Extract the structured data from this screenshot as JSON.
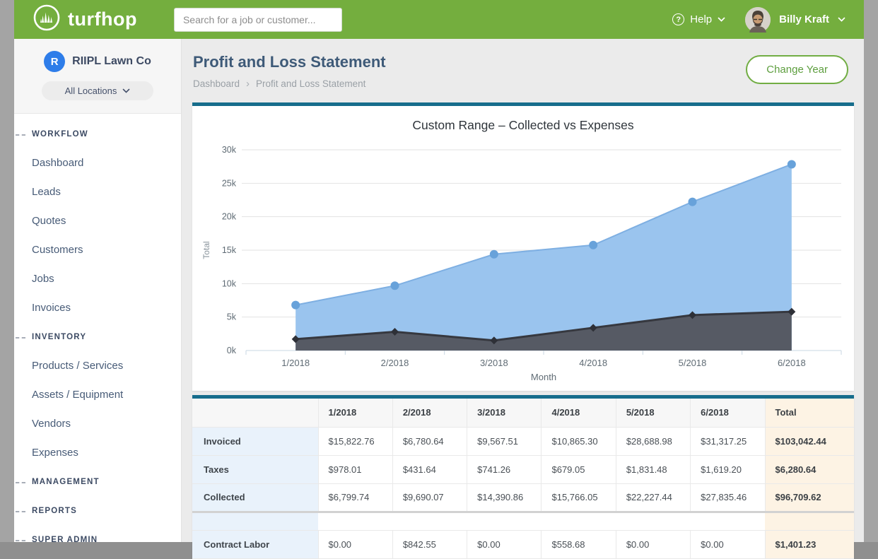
{
  "header": {
    "brand": "turfhop",
    "search_placeholder": "Search for a job or customer...",
    "help_label": "Help",
    "user_name": "Billy Kraft"
  },
  "icons": {
    "help_glyph": "?"
  },
  "sidebar": {
    "company": {
      "initial": "R",
      "name": "RIIPL Lawn Co"
    },
    "location_selector": "All Locations",
    "sections": [
      {
        "label": "WORKFLOW",
        "items": [
          "Dashboard",
          "Leads",
          "Quotes",
          "Customers",
          "Jobs",
          "Invoices"
        ]
      },
      {
        "label": "INVENTORY",
        "items": [
          "Products / Services",
          "Assets / Equipment",
          "Vendors",
          "Expenses"
        ]
      },
      {
        "label": "MANAGEMENT",
        "items": []
      },
      {
        "label": "REPORTS",
        "items": []
      },
      {
        "label": "SUPER ADMIN",
        "items": []
      }
    ]
  },
  "page": {
    "title": "Profit and Loss Statement",
    "breadcrumb": [
      "Dashboard",
      "Profit and Loss Statement"
    ],
    "breadcrumb_separator": "›",
    "change_year_label": "Change Year"
  },
  "colors": {
    "brand_green": "#74ae3e",
    "card_accent_teal": "#166d8c",
    "table_label_blue": "#e9f2fb",
    "table_total_peach": "#fdf3e4"
  },
  "chart_data": {
    "type": "area",
    "title": "Custom Range – Collected vs Expenses",
    "xlabel": "Month",
    "ylabel": "Total",
    "categories": [
      "1/2018",
      "2/2018",
      "3/2018",
      "4/2018",
      "5/2018",
      "6/2018"
    ],
    "series": [
      {
        "name": "Collected",
        "values": [
          6799.74,
          9690.07,
          14390.86,
          15766.05,
          22227.44,
          27835.46
        ],
        "fill": "#9ac4ee",
        "line": "#7eafe2",
        "point": "#68a2da",
        "point_shape": "circle"
      },
      {
        "name": "Expenses",
        "values": [
          1700,
          2800,
          1500,
          3400,
          5300,
          5800
        ],
        "fill": "#565a64",
        "line": "#36383f",
        "point": "#2e3037",
        "point_shape": "diamond"
      }
    ],
    "ylim": [
      0,
      30000
    ],
    "ytick_step": 5000,
    "ytick_labels": [
      "0k",
      "5k",
      "10k",
      "15k",
      "20k",
      "25k",
      "30k"
    ],
    "grid": true,
    "legend": "none"
  },
  "table": {
    "column_headers": [
      "1/2018",
      "2/2018",
      "3/2018",
      "4/2018",
      "5/2018",
      "6/2018",
      "Total"
    ],
    "sections": [
      {
        "rows": [
          {
            "label": "Invoiced",
            "values": [
              "$15,822.76",
              "$6,780.64",
              "$9,567.51",
              "$10,865.30",
              "$28,688.98",
              "$31,317.25"
            ],
            "total": "$103,042.44"
          },
          {
            "label": "Taxes",
            "values": [
              "$978.01",
              "$431.64",
              "$741.26",
              "$679.05",
              "$1,831.48",
              "$1,619.20"
            ],
            "total": "$6,280.64"
          },
          {
            "label": "Collected",
            "values": [
              "$6,799.74",
              "$9,690.07",
              "$14,390.86",
              "$15,766.05",
              "$22,227.44",
              "$27,835.46"
            ],
            "total": "$96,709.62"
          }
        ]
      },
      {
        "rows": [
          {
            "label": "Contract Labor",
            "values": [
              "$0.00",
              "$842.55",
              "$0.00",
              "$558.68",
              "$0.00",
              "$0.00"
            ],
            "total": "$1,401.23"
          }
        ]
      }
    ]
  }
}
